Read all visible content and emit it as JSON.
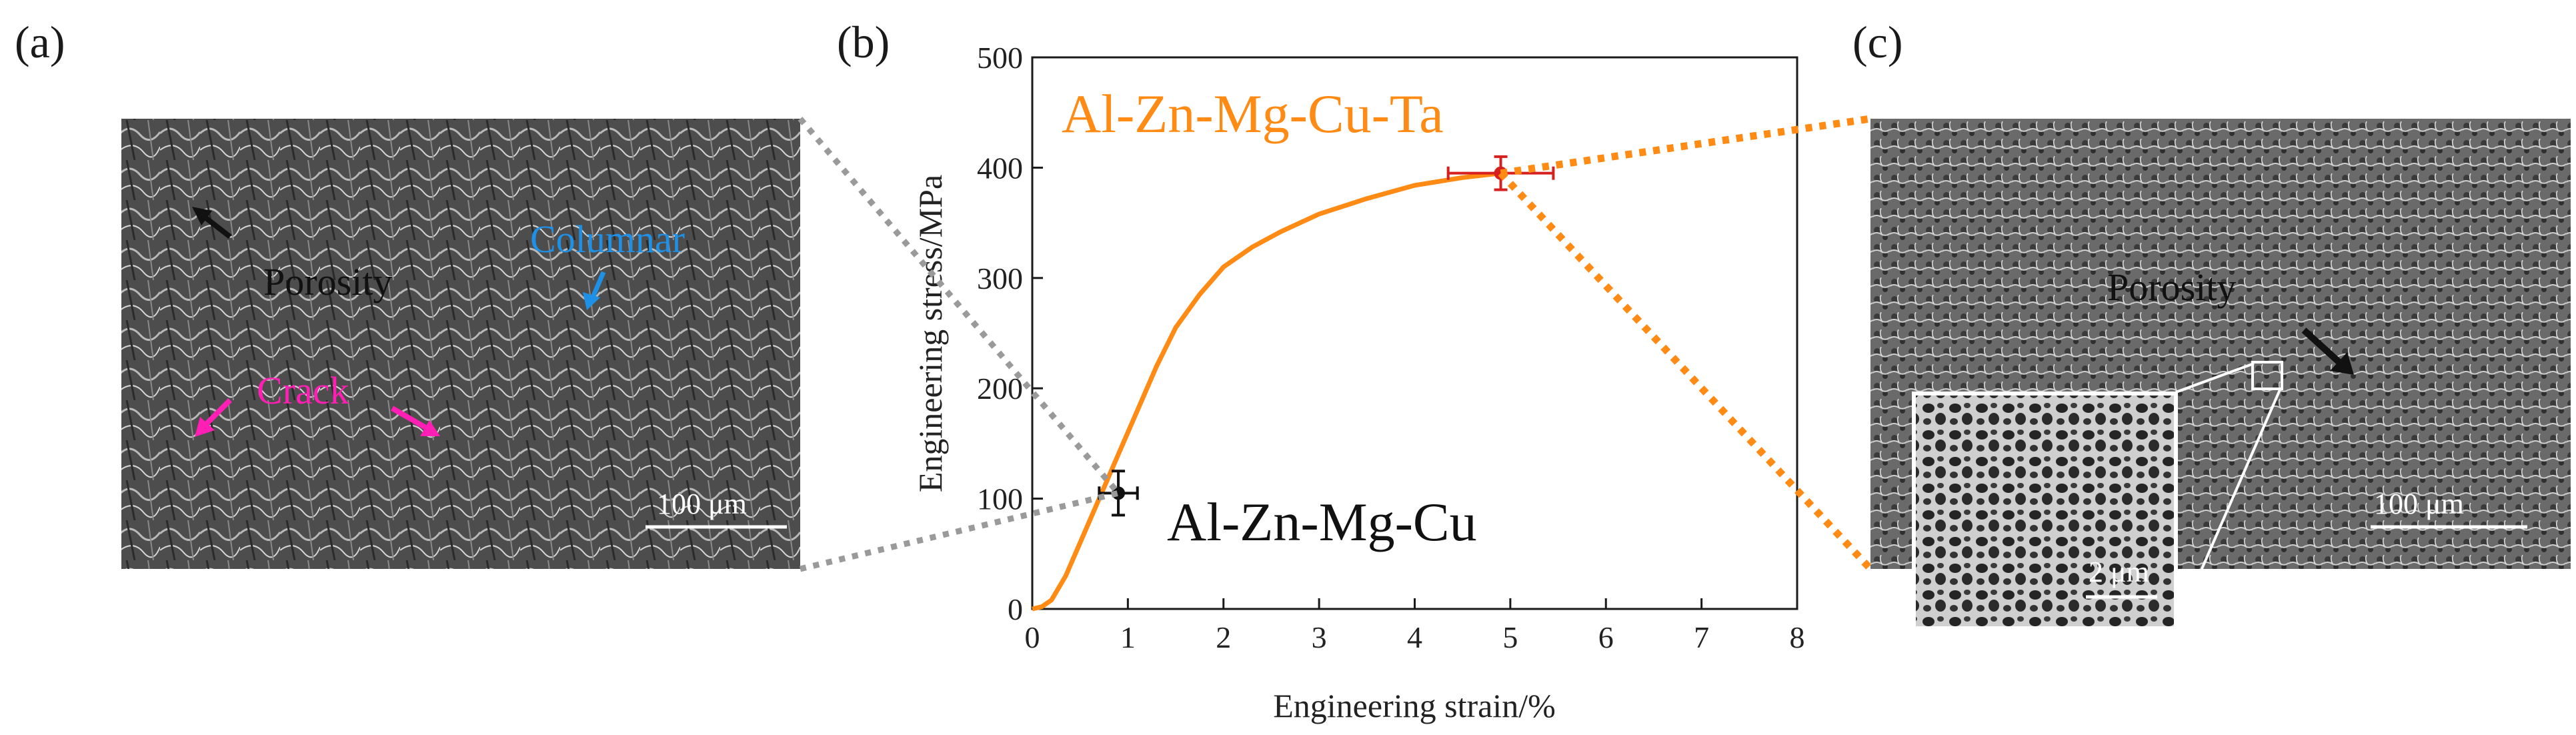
{
  "panels": {
    "a": {
      "label": "(a)",
      "annotations": {
        "porosity": "Porosity",
        "columnar": "Columnar",
        "crack": "Crack"
      },
      "scale_bar": "100 μm"
    },
    "b": {
      "label": "(b)"
    },
    "c": {
      "label": "(c)",
      "annotations": {
        "porosity": "Porosity"
      },
      "scale_bar": "100 μm",
      "inset_scale_bar": "2 μm"
    }
  },
  "colors": {
    "orange": "#ff8a14",
    "black": "#111111",
    "red_errorbar": "#d62020",
    "gray_connector": "#9a9a9a",
    "magenta": "#ff1fb4",
    "blue": "#1e90e6"
  },
  "chart_data": {
    "type": "line",
    "xlabel": "Engineering strain/%",
    "ylabel": "Engineering stress/MPa",
    "xlim": [
      0,
      8
    ],
    "ylim": [
      0,
      500
    ],
    "xticks": [
      0,
      1,
      2,
      3,
      4,
      5,
      6,
      7,
      8
    ],
    "yticks": [
      0,
      100,
      200,
      300,
      400,
      500
    ],
    "grid": false,
    "series": [
      {
        "name": "Al-Zn-Mg-Cu-Ta",
        "color": "#ff8a14",
        "x": [
          0,
          0.1,
          0.2,
          0.35,
          0.5,
          0.7,
          0.9,
          1.1,
          1.3,
          1.5,
          1.75,
          2.0,
          2.3,
          2.6,
          3.0,
          3.5,
          4.0,
          4.5,
          4.9
        ],
        "y": [
          0,
          2,
          8,
          30,
          60,
          100,
          140,
          180,
          220,
          255,
          285,
          310,
          328,
          342,
          358,
          372,
          384,
          391,
          395
        ]
      }
    ],
    "points": [
      {
        "name": "Al-Zn-Mg-Cu",
        "x": 0.9,
        "y": 105,
        "xerr": 0.2,
        "yerr": 20,
        "color": "#111111"
      },
      {
        "name": "Al-Zn-Mg-Cu-Ta",
        "x": 4.9,
        "y": 395,
        "xerr": 0.55,
        "yerr": 15,
        "color": "#d62020"
      }
    ]
  }
}
